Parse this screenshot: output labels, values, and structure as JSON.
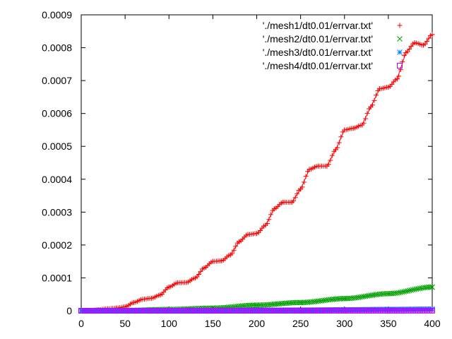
{
  "chart_data": {
    "type": "scatter",
    "title": "",
    "xlabel": "",
    "ylabel": "",
    "xlim": [
      0,
      400
    ],
    "ylim": [
      0,
      0.0009
    ],
    "x_ticks": [
      "0",
      "50",
      "100",
      "150",
      "200",
      "250",
      "300",
      "350",
      "400"
    ],
    "y_ticks": [
      "0",
      "0.0001",
      "0.0002",
      "0.0003",
      "0.0004",
      "0.0005",
      "0.0006",
      "0.0007",
      "0.0008",
      "0.0009"
    ],
    "grid": false,
    "legend_position": "top-right",
    "series": [
      {
        "name": "'./mesh1/dt0.01/errvar.txt'",
        "marker": "plus",
        "color": "#ff0000",
        "points": [
          [
            0,
            0
          ],
          [
            10,
            1e-06
          ],
          [
            20,
            3e-06
          ],
          [
            30,
            6e-06
          ],
          [
            40,
            8e-06
          ],
          [
            50,
            1.2e-05
          ],
          [
            60,
            2.5e-05
          ],
          [
            70,
            3.5e-05
          ],
          [
            80,
            3.8e-05
          ],
          [
            90,
            4.8e-05
          ],
          [
            100,
            7.2e-05
          ],
          [
            110,
            8.5e-05
          ],
          [
            120,
            8.6e-05
          ],
          [
            130,
            0.0001
          ],
          [
            140,
            0.00013
          ],
          [
            150,
            0.00015
          ],
          [
            160,
            0.000152
          ],
          [
            170,
            0.00017
          ],
          [
            180,
            0.00021
          ],
          [
            190,
            0.000232
          ],
          [
            200,
            0.000235
          ],
          [
            210,
            0.00026
          ],
          [
            220,
            0.00031
          ],
          [
            230,
            0.00033
          ],
          [
            240,
            0.00033
          ],
          [
            250,
            0.00037
          ],
          [
            260,
            0.00043
          ],
          [
            270,
            0.00044
          ],
          [
            280,
            0.00044
          ],
          [
            290,
            0.00049
          ],
          [
            300,
            0.00055
          ],
          [
            310,
            0.000555
          ],
          [
            320,
            0.000565
          ],
          [
            330,
            0.00062
          ],
          [
            340,
            0.000675
          ],
          [
            350,
            0.00068
          ],
          [
            360,
            0.000705
          ],
          [
            370,
            0.000785
          ],
          [
            380,
            0.000815
          ],
          [
            390,
            0.000808
          ],
          [
            400,
            0.00084
          ]
        ]
      },
      {
        "name": "'./mesh2/dt0.01/errvar.txt'",
        "marker": "cross",
        "color": "#00a000",
        "points": [
          [
            0,
            0
          ],
          [
            50,
            1e-06
          ],
          [
            100,
            4e-06
          ],
          [
            150,
            8e-06
          ],
          [
            200,
            1.7e-05
          ],
          [
            250,
            2.5e-05
          ],
          [
            300,
            3.7e-05
          ],
          [
            350,
            5.2e-05
          ],
          [
            400,
            7.2e-05
          ]
        ]
      },
      {
        "name": "'./mesh3/dt0.01/errvar.txt'",
        "marker": "star",
        "color": "#0080ff",
        "points": [
          [
            0,
            0
          ],
          [
            50,
            0
          ],
          [
            100,
            5e-07
          ],
          [
            150,
            1e-06
          ],
          [
            200,
            1.5e-06
          ],
          [
            250,
            2e-06
          ],
          [
            300,
            3e-06
          ],
          [
            350,
            4e-06
          ],
          [
            400,
            5e-06
          ]
        ]
      },
      {
        "name": "'./mesh4/dt0.01/errvar.txt'",
        "marker": "box",
        "color": "#c000ff",
        "points": [
          [
            0,
            0
          ],
          [
            50,
            0
          ],
          [
            100,
            0
          ],
          [
            150,
            2e-07
          ],
          [
            200,
            3e-07
          ],
          [
            250,
            4e-07
          ],
          [
            300,
            5e-07
          ],
          [
            350,
            6e-07
          ],
          [
            400,
            8e-07
          ]
        ]
      }
    ]
  }
}
